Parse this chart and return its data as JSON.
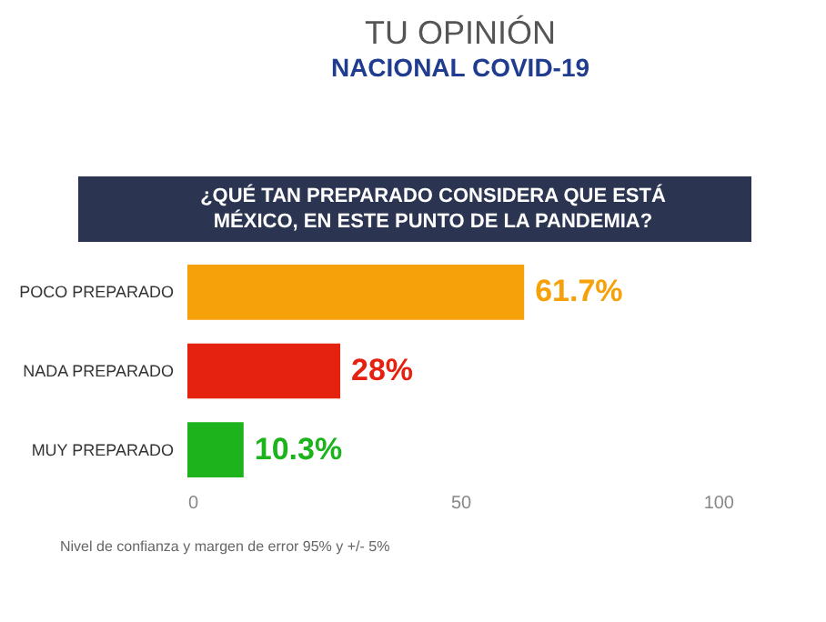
{
  "chart_data": {
    "type": "bar",
    "orientation": "horizontal",
    "title": "TU OPINIÓN",
    "subtitle": "NACIONAL COVID-19",
    "annotations": [
      "¿QUÉ TAN PREPARADO CONSIDERA QUE ESTÁ MÉXICO, EN ESTE PUNTO DE LA PANDEMIA?",
      "Nivel de confianza y margen de error 95% y +/- 5%"
    ],
    "categories": [
      "POCO PREPARADO",
      "NADA PREPARADO",
      "MUY PREPARADO"
    ],
    "values": [
      61.7,
      28,
      10.3
    ],
    "colors": [
      "#f7a10a",
      "#e5210f",
      "#1db31d"
    ],
    "value_labels": [
      "61.7%",
      "28%",
      "10.3%"
    ],
    "xlim": [
      0,
      100
    ],
    "xticks": [
      0,
      50,
      100
    ],
    "grid": false
  }
}
